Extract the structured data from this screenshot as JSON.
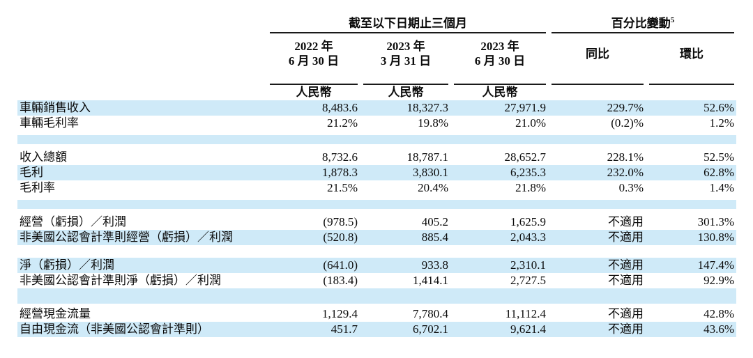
{
  "colors": {
    "stripe": "#cfeaf8",
    "rule": "#1a1a1a",
    "text": "#0b0b0b"
  },
  "header": {
    "period_group": "截至以下日期止三個月",
    "change_group": "百分比變動",
    "change_group_superscript": "5",
    "columns": [
      {
        "line1": "2022 年",
        "line2": "6 月 30 日",
        "unit": "人民幣"
      },
      {
        "line1": "2023 年",
        "line2": "3 月 31 日",
        "unit": "人民幣"
      },
      {
        "line1": "2023 年",
        "line2": "6 月 30 日",
        "unit": "人民幣"
      },
      {
        "line1": "同比"
      },
      {
        "line1": "環比"
      }
    ]
  },
  "rows": [
    {
      "type": "data",
      "bg": "stripe",
      "label": "車輛銷售收入",
      "values": [
        "8,483.6",
        "18,327.3",
        "27,971.9",
        "229.7%",
        "52.6%"
      ]
    },
    {
      "type": "data",
      "bg": "white",
      "label": "車輛毛利率",
      "values": [
        "21.2%",
        "19.8%",
        "21.0%",
        "(0.2)%",
        "1.2%"
      ]
    },
    {
      "type": "spacer",
      "pattern": "white-blue-white"
    },
    {
      "type": "data",
      "bg": "white",
      "label": "收入總額",
      "values": [
        "8,732.6",
        "18,787.1",
        "28,652.7",
        "228.1%",
        "52.5%"
      ]
    },
    {
      "type": "data",
      "bg": "stripe",
      "label": "毛利",
      "values": [
        "1,878.3",
        "3,830.1",
        "6,235.3",
        "232.0%",
        "62.8%"
      ]
    },
    {
      "type": "data",
      "bg": "white",
      "label": "毛利率",
      "values": [
        "21.5%",
        "20.4%",
        "21.8%",
        "0.3%",
        "1.4%"
      ]
    },
    {
      "type": "spacer",
      "pattern": "white-blue-white"
    },
    {
      "type": "data",
      "bg": "white",
      "label": "經營（虧損）／利潤",
      "values": [
        "(978.5)",
        "405.2",
        "1,625.9",
        "不適用",
        "301.3%"
      ]
    },
    {
      "type": "data",
      "bg": "stripe",
      "label": "非美國公認會計準則經營（虧損）／利潤",
      "values": [
        "(520.8)",
        "885.4",
        "2,043.3",
        "不適用",
        "130.8%"
      ]
    },
    {
      "type": "spacer",
      "pattern": "white"
    },
    {
      "type": "data",
      "bg": "stripe",
      "label": "淨（虧損）／利潤",
      "values": [
        "(641.0)",
        "933.8",
        "2,310.1",
        "不適用",
        "147.4%"
      ]
    },
    {
      "type": "data",
      "bg": "white",
      "label": "非美國公認會計準則淨（虧損）／利潤",
      "values": [
        "(183.4)",
        "1,414.1",
        "2,727.5",
        "不適用",
        "92.9%"
      ]
    },
    {
      "type": "spacer",
      "pattern": "blue-white"
    },
    {
      "type": "data",
      "bg": "white",
      "label": "經營現金流量",
      "values": [
        "1,129.4",
        "7,780.4",
        "11,112.4",
        "不適用",
        "42.8%"
      ]
    },
    {
      "type": "data",
      "bg": "stripe",
      "label": "自由現金流（非美國公認會計準則）",
      "values": [
        "451.7",
        "6,702.1",
        "9,621.4",
        "不適用",
        "43.6%"
      ]
    }
  ]
}
